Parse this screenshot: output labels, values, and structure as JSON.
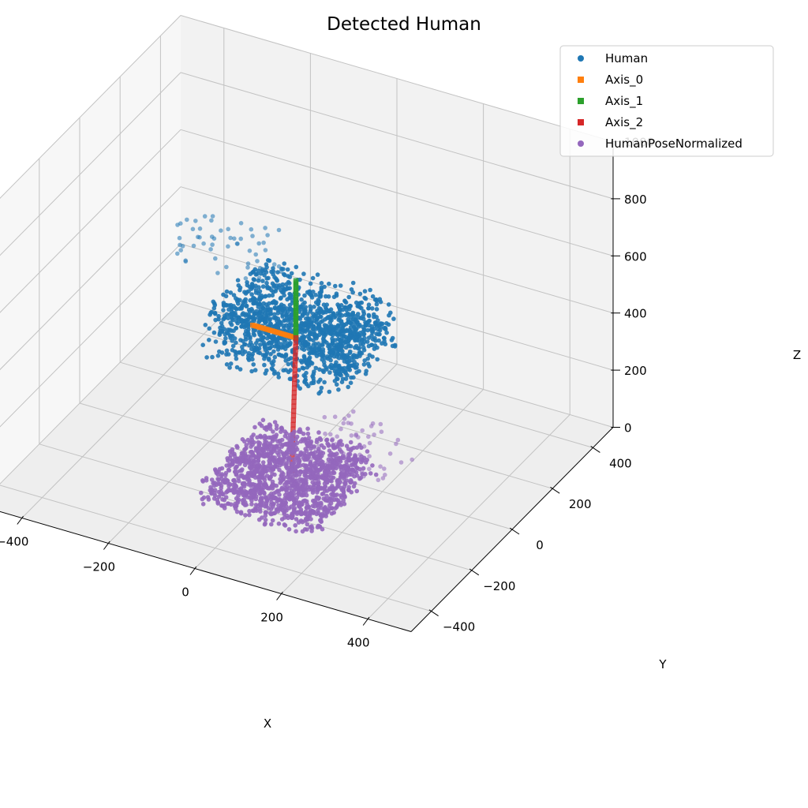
{
  "chart_data": {
    "type": "scatter",
    "projection": "3d",
    "title": "Detected Human",
    "xlabel": "X",
    "ylabel": "Y",
    "zlabel": "Z",
    "xlim": [
      -500,
      500
    ],
    "ylim": [
      -500,
      500
    ],
    "zlim": [
      0,
      1000
    ],
    "x_ticks": [
      -400,
      -200,
      0,
      200,
      400
    ],
    "y_ticks": [
      -400,
      -200,
      0,
      200,
      400
    ],
    "z_ticks": [
      0,
      200,
      400,
      600,
      800,
      1000
    ],
    "x_tick_labels": [
      "−400",
      "−200",
      "0",
      "200",
      "400"
    ],
    "y_tick_labels": [
      "−400",
      "−200",
      "0",
      "200",
      "400"
    ],
    "z_tick_labels": [
      "0",
      "200",
      "400",
      "600",
      "800",
      "1000"
    ],
    "grid": true,
    "legend_position": "top-right",
    "series": [
      {
        "name": "Human",
        "color": "#1f77b4",
        "marker": "circle",
        "region": {
          "x": [
            -160,
            160
          ],
          "y": [
            -120,
            160
          ],
          "z": [
            380,
            560
          ],
          "tail": {
            "x_range": [
              -320,
              -60
            ],
            "y_range": [
              0,
              120
            ],
            "z_range": [
              560,
              720
            ]
          }
        }
      },
      {
        "name": "Axis_0",
        "color": "#ff7f0e",
        "marker": "square",
        "start": [
          0,
          0,
          450
        ],
        "end": [
          -100,
          0,
          450
        ],
        "points": 25
      },
      {
        "name": "Axis_1",
        "color": "#2ca02c",
        "marker": "square",
        "start": [
          0,
          0,
          450
        ],
        "end": [
          0,
          0,
          650
        ],
        "points": 28
      },
      {
        "name": "Axis_2",
        "color": "#d62728",
        "marker": "square",
        "start": [
          0,
          0,
          450
        ],
        "end": [
          0,
          -20,
          0
        ],
        "points": 30
      },
      {
        "name": "HumanPoseNormalized",
        "color": "#9467bd",
        "marker": "circle",
        "region": {
          "x": [
            -130,
            130
          ],
          "y": [
            -200,
            120
          ],
          "z": [
            -60,
            40
          ],
          "tail": {
            "x_range": [
              0,
              200
            ],
            "y_range": [
              0,
              200
            ],
            "z_range": [
              -20,
              80
            ]
          }
        }
      }
    ]
  }
}
